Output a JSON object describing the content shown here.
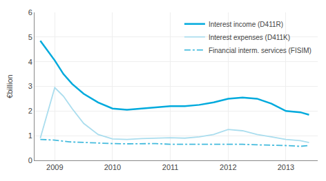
{
  "chart_data": {
    "type": "line",
    "ylabel": "€billion",
    "xlim": [
      2008.65,
      2013.55
    ],
    "xticks": [
      2009,
      2010,
      2011,
      2012,
      2013
    ],
    "ylim": [
      0,
      6
    ],
    "yticks": [
      0,
      1,
      2,
      3,
      4,
      5,
      6
    ],
    "grid": true,
    "legend": "upper right",
    "series": [
      {
        "name": "Interest income (D411R)",
        "color": "#00aadd",
        "line_style": "solid",
        "x": [
          2008.75,
          2009.0,
          2009.15,
          2009.3,
          2009.5,
          2009.75,
          2010.0,
          2010.25,
          2010.5,
          2010.75,
          2011.0,
          2011.25,
          2011.5,
          2011.75,
          2012.0,
          2012.25,
          2012.5,
          2012.75,
          2013.0,
          2013.25,
          2013.4
        ],
        "values": [
          4.85,
          4.05,
          3.5,
          3.1,
          2.7,
          2.35,
          2.1,
          2.05,
          2.1,
          2.15,
          2.2,
          2.2,
          2.25,
          2.35,
          2.5,
          2.55,
          2.5,
          2.3,
          2.0,
          1.95,
          1.85
        ]
      },
      {
        "name": "Interest expenses (D411K)",
        "color": "#aaddee",
        "line_style": "solid",
        "x": [
          2008.75,
          2009.0,
          2009.15,
          2009.3,
          2009.5,
          2009.75,
          2010.0,
          2010.25,
          2010.5,
          2010.75,
          2011.0,
          2011.25,
          2011.5,
          2011.75,
          2012.0,
          2012.25,
          2012.5,
          2012.75,
          2013.0,
          2013.25,
          2013.4
        ],
        "values": [
          0.9,
          2.95,
          2.6,
          2.1,
          1.5,
          1.05,
          0.87,
          0.85,
          0.88,
          0.9,
          0.92,
          0.9,
          0.95,
          1.05,
          1.25,
          1.2,
          1.05,
          0.95,
          0.85,
          0.8,
          0.72
        ]
      },
      {
        "name": "Financial interm. services (FISIM)",
        "color": "#44bbdd",
        "line_style": "dashdot",
        "x": [
          2008.75,
          2009.0,
          2009.25,
          2009.5,
          2009.75,
          2010.0,
          2010.25,
          2010.5,
          2010.75,
          2011.0,
          2011.25,
          2011.5,
          2011.75,
          2012.0,
          2012.25,
          2012.5,
          2012.75,
          2013.0,
          2013.25,
          2013.4
        ],
        "values": [
          0.85,
          0.82,
          0.75,
          0.72,
          0.7,
          0.68,
          0.67,
          0.67,
          0.68,
          0.65,
          0.65,
          0.65,
          0.67,
          0.67,
          0.65,
          0.63,
          0.62,
          0.6,
          0.57,
          0.6
        ]
      }
    ]
  }
}
